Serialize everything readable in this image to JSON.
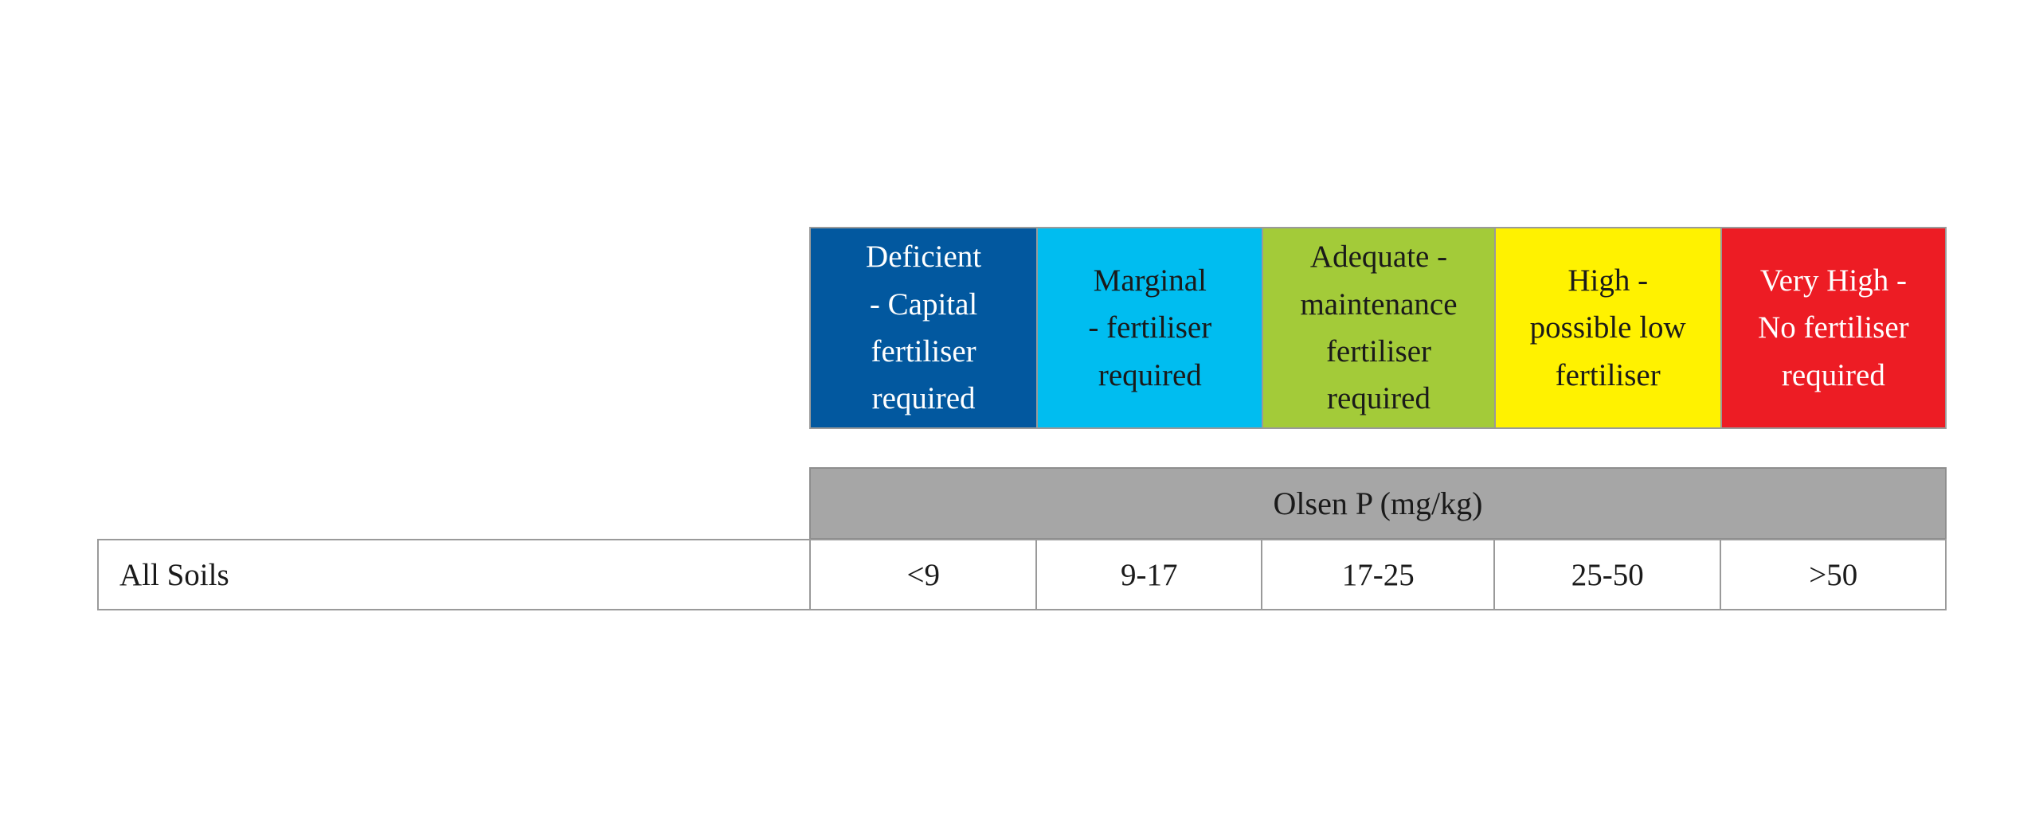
{
  "categories": [
    {
      "lines": [
        "Deficient",
        "- Capital",
        "fertiliser",
        "required"
      ],
      "bg": "#02589f",
      "fg": "#ffffff"
    },
    {
      "lines": [
        "Marginal",
        "- fertiliser",
        "required"
      ],
      "bg": "#00bdf0",
      "fg": "#1a1a1a"
    },
    {
      "lines": [
        "Adequate -",
        "maintenance",
        "fertiliser",
        "required"
      ],
      "bg": "#a3cb39",
      "fg": "#1a1a1a"
    },
    {
      "lines": [
        "High -",
        "possible low",
        "fertiliser"
      ],
      "bg": "#fff200",
      "fg": "#1a1a1a"
    },
    {
      "lines": [
        "Very High -",
        "No fertiliser",
        "required"
      ],
      "bg": "#ed1c24",
      "fg": "#ffffff"
    }
  ],
  "olsen": {
    "label": "Olsen P (mg/kg)"
  },
  "row": {
    "label": "All Soils",
    "values": [
      "<9",
      "9-17",
      "17-25",
      "25-50",
      ">50"
    ]
  }
}
